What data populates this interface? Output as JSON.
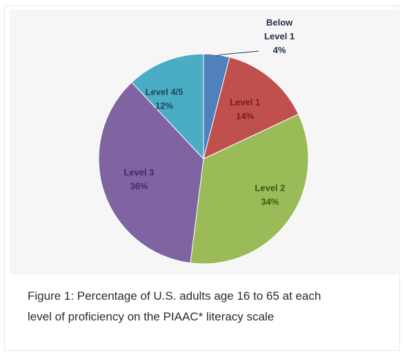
{
  "chart_data": {
    "type": "pie",
    "categories": [
      "Below Level 1",
      "Level 1",
      "Level 2",
      "Level 3",
      "Level 4/5"
    ],
    "values": [
      4,
      14,
      34,
      36,
      12
    ],
    "value_labels": [
      "4%",
      "14%",
      "34%",
      "36%",
      "12%"
    ],
    "colors": [
      "#4f81bd",
      "#c0504d",
      "#9bbb59",
      "#8064a2",
      "#4bacc6"
    ],
    "label_colors": [
      "#1f2d4d",
      "#7a1c1a",
      "#3b5a12",
      "#3f2a63",
      "#1d4a59"
    ],
    "start_angle_deg": 0,
    "direction": "clockwise",
    "legend": "none",
    "leader_line_on": "Below Level 1"
  },
  "caption": {
    "line1": "Figure 1: Percentage of U.S. adults age 16 to 65 at each",
    "line2": "level of proficiency on the PIAAC* literacy scale"
  }
}
